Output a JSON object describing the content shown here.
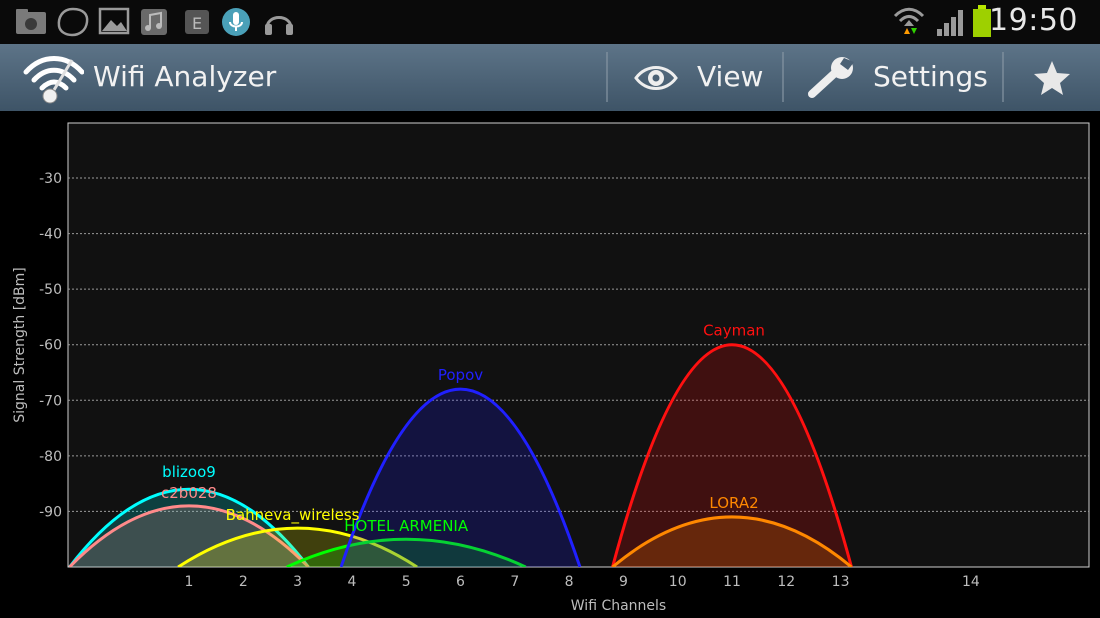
{
  "status_bar": {
    "time": "19:50",
    "icons": [
      "gallery-folder-icon",
      "chat-bubble-icon",
      "image-icon",
      "music-icon",
      "e-app-icon",
      "voice-mic-icon",
      "headphones-icon",
      "wifi-signal-icon",
      "cell-signal-icon",
      "battery-icon"
    ]
  },
  "action_bar": {
    "title": "Wifi Analyzer",
    "view_label": "View",
    "settings_label": "Settings"
  },
  "chart_data": {
    "type": "area",
    "xlabel": "Wifi Channels",
    "ylabel": "Signal Strength [dBm]",
    "x_ticks": [
      1,
      2,
      3,
      4,
      5,
      6,
      7,
      8,
      9,
      10,
      11,
      12,
      13,
      14
    ],
    "y_ticks": [
      -30,
      -40,
      -50,
      -60,
      -70,
      -80,
      -90
    ],
    "xlim": [
      -1,
      16
    ],
    "ylim": [
      -100,
      -20
    ],
    "grid": true,
    "series": [
      {
        "name": "blizoo9",
        "channel": 1,
        "signal": -86,
        "color": "#00ffff"
      },
      {
        "name": "c2b028",
        "channel": 1,
        "signal": -89,
        "color": "#ff8a8a"
      },
      {
        "name": "Bahneva_wireless",
        "channel": 3,
        "signal": -93,
        "color": "#ffff00"
      },
      {
        "name": "HOTEL ARMENIA",
        "channel": 5,
        "signal": -95,
        "color": "#00ff00"
      },
      {
        "name": "Popov",
        "channel": 6,
        "signal": -68,
        "color": "#2020ff"
      },
      {
        "name": "Cayman",
        "channel": 11,
        "signal": -60,
        "color": "#ff1010"
      },
      {
        "name": "LORA2",
        "channel": 11,
        "signal": -91,
        "color": "#ff8800"
      }
    ]
  }
}
